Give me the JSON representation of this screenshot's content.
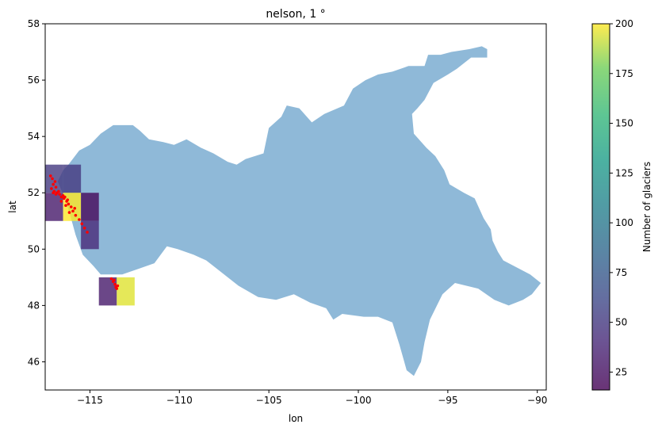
{
  "chart_data": {
    "type": "map",
    "title": "nelson, 1 °",
    "xlabel": "lon",
    "ylabel": "lat",
    "xlim": [
      -117.5,
      -89.5
    ],
    "ylim": [
      45,
      58
    ],
    "xticks": [
      -115,
      -110,
      -105,
      -100,
      -95,
      -90
    ],
    "xtick_labels": [
      "−115",
      "−110",
      "−105",
      "−100",
      "−95",
      "−90"
    ],
    "yticks": [
      46,
      48,
      50,
      52,
      54,
      56,
      58
    ],
    "ytick_labels": [
      "46",
      "48",
      "50",
      "52",
      "54",
      "56",
      "58"
    ],
    "basin": {
      "name": "nelson",
      "color": "#8fb9d8",
      "outline": [
        [
          -116.2,
          53.0
        ],
        [
          -115.6,
          53.5
        ],
        [
          -115.0,
          53.7
        ],
        [
          -114.4,
          54.1
        ],
        [
          -113.7,
          54.4
        ],
        [
          -112.6,
          54.4
        ],
        [
          -112.2,
          54.2
        ],
        [
          -111.7,
          53.9
        ],
        [
          -110.9,
          53.8
        ],
        [
          -110.3,
          53.7
        ],
        [
          -109.6,
          53.9
        ],
        [
          -108.8,
          53.6
        ],
        [
          -108.1,
          53.4
        ],
        [
          -107.3,
          53.1
        ],
        [
          -106.8,
          53.0
        ],
        [
          -106.3,
          53.2
        ],
        [
          -105.3,
          53.4
        ],
        [
          -105.0,
          54.3
        ],
        [
          -104.3,
          54.7
        ],
        [
          -104.0,
          55.1
        ],
        [
          -103.3,
          55.0
        ],
        [
          -102.6,
          54.5
        ],
        [
          -101.9,
          54.8
        ],
        [
          -100.8,
          55.1
        ],
        [
          -100.3,
          55.7
        ],
        [
          -99.6,
          56.0
        ],
        [
          -98.9,
          56.2
        ],
        [
          -98.1,
          56.3
        ],
        [
          -97.2,
          56.5
        ],
        [
          -96.3,
          56.5
        ],
        [
          -96.1,
          56.9
        ],
        [
          -95.4,
          56.9
        ],
        [
          -94.8,
          57.0
        ],
        [
          -93.8,
          57.1
        ],
        [
          -93.1,
          57.2
        ],
        [
          -92.8,
          57.1
        ],
        [
          -92.8,
          56.8
        ],
        [
          -93.7,
          56.8
        ],
        [
          -94.5,
          56.4
        ],
        [
          -95.0,
          56.2
        ],
        [
          -95.8,
          55.9
        ],
        [
          -96.3,
          55.3
        ],
        [
          -96.7,
          55.0
        ],
        [
          -97.0,
          54.8
        ],
        [
          -96.9,
          54.1
        ],
        [
          -96.2,
          53.6
        ],
        [
          -95.7,
          53.3
        ],
        [
          -95.2,
          52.8
        ],
        [
          -94.9,
          52.3
        ],
        [
          -94.1,
          52.0
        ],
        [
          -93.5,
          51.8
        ],
        [
          -93.0,
          51.1
        ],
        [
          -92.6,
          50.7
        ],
        [
          -92.5,
          50.3
        ],
        [
          -92.2,
          49.9
        ],
        [
          -91.9,
          49.6
        ],
        [
          -91.3,
          49.4
        ],
        [
          -90.4,
          49.1
        ],
        [
          -89.8,
          48.8
        ],
        [
          -90.3,
          48.4
        ],
        [
          -90.8,
          48.2
        ],
        [
          -91.6,
          48.0
        ],
        [
          -92.4,
          48.2
        ],
        [
          -93.3,
          48.6
        ],
        [
          -94.6,
          48.8
        ],
        [
          -95.3,
          48.4
        ],
        [
          -96.0,
          47.5
        ],
        [
          -96.3,
          46.7
        ],
        [
          -96.5,
          46.0
        ],
        [
          -96.9,
          45.5
        ],
        [
          -97.3,
          45.7
        ],
        [
          -97.7,
          46.6
        ],
        [
          -98.1,
          47.4
        ],
        [
          -98.9,
          47.6
        ],
        [
          -99.7,
          47.6
        ],
        [
          -100.9,
          47.7
        ],
        [
          -101.4,
          47.5
        ],
        [
          -101.8,
          47.9
        ],
        [
          -102.7,
          48.1
        ],
        [
          -103.6,
          48.4
        ],
        [
          -104.6,
          48.2
        ],
        [
          -105.6,
          48.3
        ],
        [
          -106.7,
          48.7
        ],
        [
          -107.5,
          49.1
        ],
        [
          -108.1,
          49.4
        ],
        [
          -108.5,
          49.6
        ],
        [
          -109.2,
          49.8
        ],
        [
          -110.1,
          50.0
        ],
        [
          -110.7,
          50.1
        ],
        [
          -111.4,
          49.5
        ],
        [
          -112.3,
          49.3
        ],
        [
          -113.2,
          49.1
        ],
        [
          -114.0,
          49.1
        ],
        [
          -114.4,
          49.1
        ],
        [
          -114.8,
          49.4
        ],
        [
          -115.4,
          49.8
        ],
        [
          -115.8,
          50.5
        ],
        [
          -116.1,
          51.2
        ],
        [
          -116.4,
          51.8
        ],
        [
          -116.8,
          52.4
        ],
        [
          -116.5,
          52.8
        ]
      ]
    },
    "grid_cells": [
      {
        "lon": -117.5,
        "lat": 52,
        "count": 50
      },
      {
        "lon": -116.5,
        "lat": 52,
        "count": 50
      },
      {
        "lon": -117.5,
        "lat": 51,
        "count": 30
      },
      {
        "lon": -116.5,
        "lat": 51,
        "count": 200
      },
      {
        "lon": -115.5,
        "lat": 51,
        "count": 20
      },
      {
        "lon": -115.5,
        "lat": 50,
        "count": 40
      },
      {
        "lon": -114.5,
        "lat": 48,
        "count": 30
      },
      {
        "lon": -113.5,
        "lat": 48,
        "count": 195
      }
    ],
    "glaciers": {
      "color": "#ff0000",
      "points": [
        [
          -117.2,
          52.6
        ],
        [
          -117.1,
          52.5
        ],
        [
          -116.95,
          52.4
        ],
        [
          -117.05,
          52.3
        ],
        [
          -116.9,
          52.2
        ],
        [
          -117.15,
          52.15
        ],
        [
          -117.0,
          52.05
        ],
        [
          -116.85,
          52.0
        ],
        [
          -116.7,
          51.95
        ],
        [
          -116.6,
          51.85
        ],
        [
          -116.45,
          51.8
        ],
        [
          -116.3,
          51.7
        ],
        [
          -116.2,
          51.6
        ],
        [
          -116.05,
          51.5
        ],
        [
          -115.95,
          51.35
        ],
        [
          -115.8,
          51.2
        ],
        [
          -115.6,
          51.05
        ],
        [
          -115.45,
          50.9
        ],
        [
          -115.3,
          50.75
        ],
        [
          -115.15,
          50.6
        ],
        [
          -116.5,
          51.9
        ],
        [
          -116.35,
          51.55
        ],
        [
          -116.15,
          51.3
        ],
        [
          -116.9,
          51.95
        ],
        [
          -117.05,
          52.0
        ],
        [
          -116.6,
          51.7
        ],
        [
          -116.4,
          51.85
        ],
        [
          -116.25,
          51.75
        ],
        [
          -115.85,
          51.45
        ],
        [
          -116.75,
          52.05
        ],
        [
          -113.8,
          48.95
        ],
        [
          -113.7,
          48.85
        ],
        [
          -113.6,
          48.75
        ],
        [
          -113.55,
          48.65
        ],
        [
          -113.5,
          48.6
        ],
        [
          -113.65,
          48.9
        ],
        [
          -113.45,
          48.7
        ]
      ]
    },
    "colorbar": {
      "label": "Number of glaciers",
      "min": 16,
      "max": 200,
      "ticks": [
        25,
        50,
        75,
        100,
        125,
        150,
        175,
        200
      ],
      "tick_labels": [
        "25",
        "50",
        "75",
        "100",
        "125",
        "150",
        "175",
        "200"
      ],
      "colormap": "viridis",
      "alpha": 0.8
    }
  }
}
